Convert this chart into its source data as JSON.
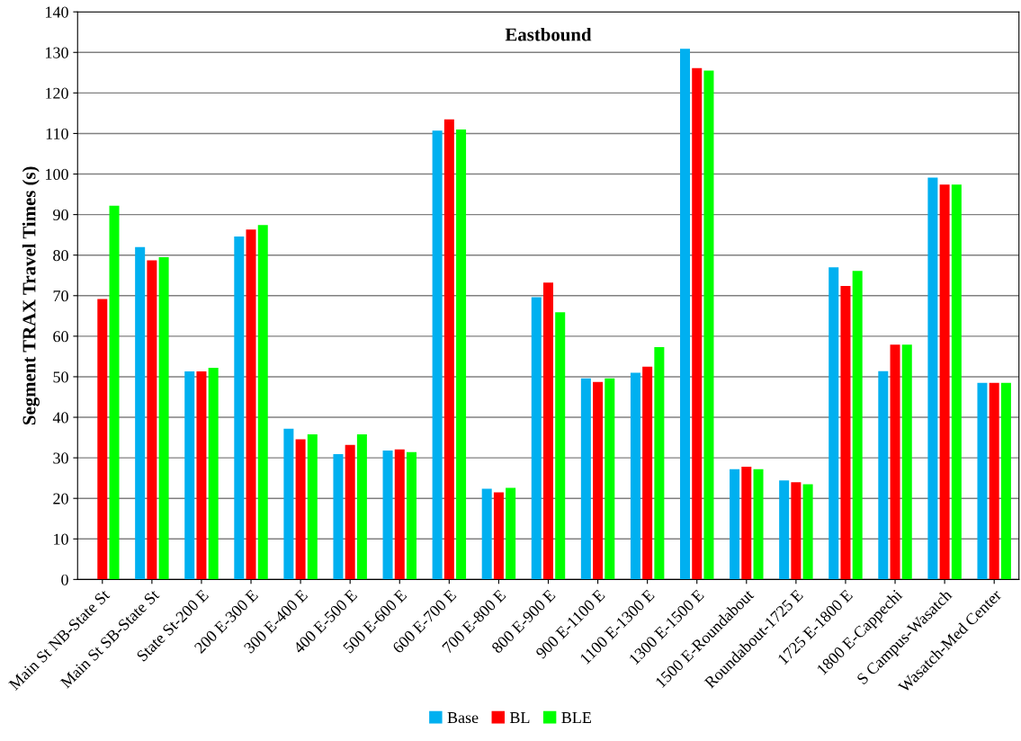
{
  "chart_data": {
    "type": "bar",
    "title": "Eastbound",
    "ylabel": "Segment TRAX Travel Times (s)",
    "categories": [
      "Main St NB-State St",
      "Main St SB-State St",
      "State St-200 E",
      "200 E-300 E",
      "300 E-400 E",
      "400 E-500 E",
      "500 E-600 E",
      "600 E-700 E",
      "700 E-800 E",
      "800 E-900 E",
      "900 E-1100 E",
      "1100 E-1300 E",
      "1300 E-1500 E",
      "1500 E-Roundabout",
      "Roundabout-1725 E",
      "1725 E-1800 E",
      "1800 E-Cappechi",
      "S Campus-Wasatch",
      "Wasatch-Med Center"
    ],
    "series": [
      {
        "name": "Base",
        "color": "#00b0f0",
        "values": [
          null,
          82,
          51.3,
          84.6,
          37.2,
          30.9,
          31.8,
          110.7,
          22.4,
          69.6,
          49.6,
          51.0,
          130.9,
          27.2,
          24.4,
          77.0,
          51.4,
          99.1,
          48.5
        ]
      },
      {
        "name": "BL",
        "color": "#ff0000",
        "values": [
          69.2,
          78.7,
          51.3,
          86.3,
          34.6,
          33.2,
          32.1,
          113.5,
          21.5,
          73.2,
          48.7,
          52.5,
          126.1,
          27.8,
          24.0,
          72.4,
          57.9,
          97.4,
          48.5
        ]
      },
      {
        "name": "BLE",
        "color": "#00ff00",
        "values": [
          92.2,
          79.5,
          52.2,
          87.4,
          35.8,
          35.8,
          31.4,
          111.0,
          22.6,
          65.9,
          49.6,
          57.3,
          125.5,
          27.2,
          23.5,
          76.1,
          57.9,
          97.4,
          48.5
        ]
      }
    ],
    "ylim": [
      0,
      140
    ],
    "yticks": [
      0,
      10,
      20,
      30,
      40,
      50,
      60,
      70,
      80,
      90,
      100,
      110,
      120,
      130,
      140
    ],
    "grid": "y",
    "legend": "bottom"
  }
}
